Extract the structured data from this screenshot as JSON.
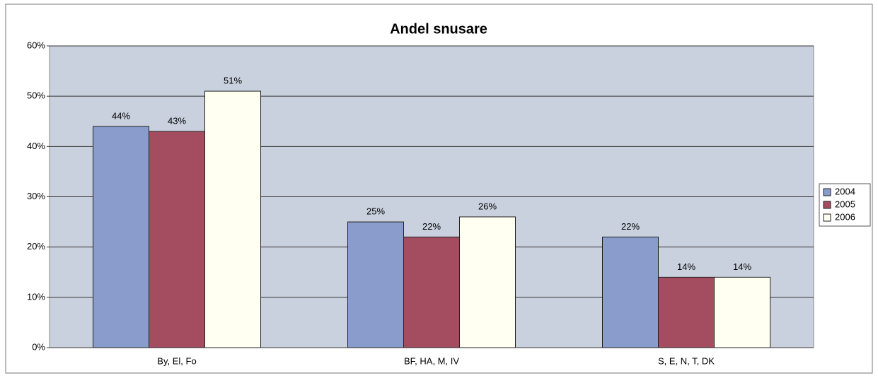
{
  "chart_data": {
    "type": "bar",
    "title": "Andel snusare",
    "categories": [
      "By, El, Fo",
      "BF, HA, M, IV",
      "S, E, N, T, DK"
    ],
    "series": [
      {
        "name": "2004",
        "color": "#8a9ccc",
        "values": [
          44,
          25,
          22
        ],
        "value_labels": [
          "44%",
          "25%",
          "22%"
        ]
      },
      {
        "name": "2005",
        "color": "#a54d60",
        "values": [
          43,
          22,
          14
        ],
        "value_labels": [
          "43%",
          "22%",
          "14%"
        ]
      },
      {
        "name": "2006",
        "color": "#fffff2",
        "values": [
          51,
          26,
          14
        ],
        "value_labels": [
          "51%",
          "26%",
          "14%"
        ]
      }
    ],
    "ylim": [
      0,
      60
    ],
    "yticks": [
      {
        "value": 0,
        "label": "0%"
      },
      {
        "value": 10,
        "label": "10%"
      },
      {
        "value": 20,
        "label": "20%"
      },
      {
        "value": 30,
        "label": "30%"
      },
      {
        "value": 40,
        "label": "40%"
      },
      {
        "value": 50,
        "label": "50%"
      },
      {
        "value": 60,
        "label": "60%"
      }
    ],
    "grid": true,
    "legend": "right"
  }
}
